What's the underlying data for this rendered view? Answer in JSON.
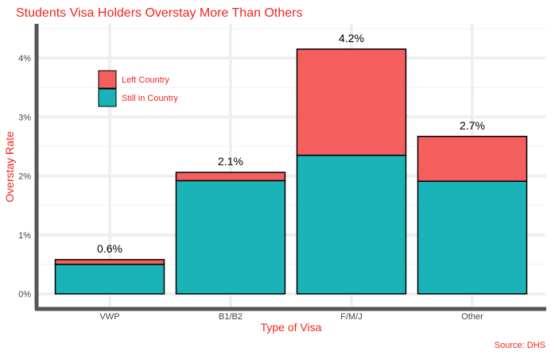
{
  "chart_data": {
    "type": "bar",
    "stacked": true,
    "title": "Students Visa Holders Overstay More Than Others",
    "xlabel": "Type of Visa",
    "ylabel": "Overstay Rate",
    "caption": "Source: DHS",
    "categories": [
      "VWP",
      "B1/B2",
      "F/M/J",
      "Other"
    ],
    "series": [
      {
        "name": "Still in Country",
        "values": [
          0.5,
          1.92,
          2.35,
          1.91
        ],
        "color": "#1ab3b8"
      },
      {
        "name": "Left Country",
        "values": [
          0.08,
          0.14,
          1.8,
          0.76
        ],
        "color": "#f55f5d"
      }
    ],
    "totals_labels": [
      "0.6%",
      "2.1%",
      "4.2%",
      "2.7%"
    ],
    "totals": [
      0.58,
      2.06,
      4.15,
      2.67
    ],
    "ylim": [
      -0.15,
      4.5
    ],
    "yticks": [
      0,
      1,
      2,
      3,
      4
    ],
    "ytick_labels": [
      "0%",
      "1%",
      "2%",
      "3%",
      "4%"
    ],
    "grid": true,
    "legend_position": "top-left",
    "colors": {
      "title": "#f0261e",
      "axis_line": "#555555",
      "grid": "#efefef",
      "bar_stroke": "#000000"
    }
  }
}
